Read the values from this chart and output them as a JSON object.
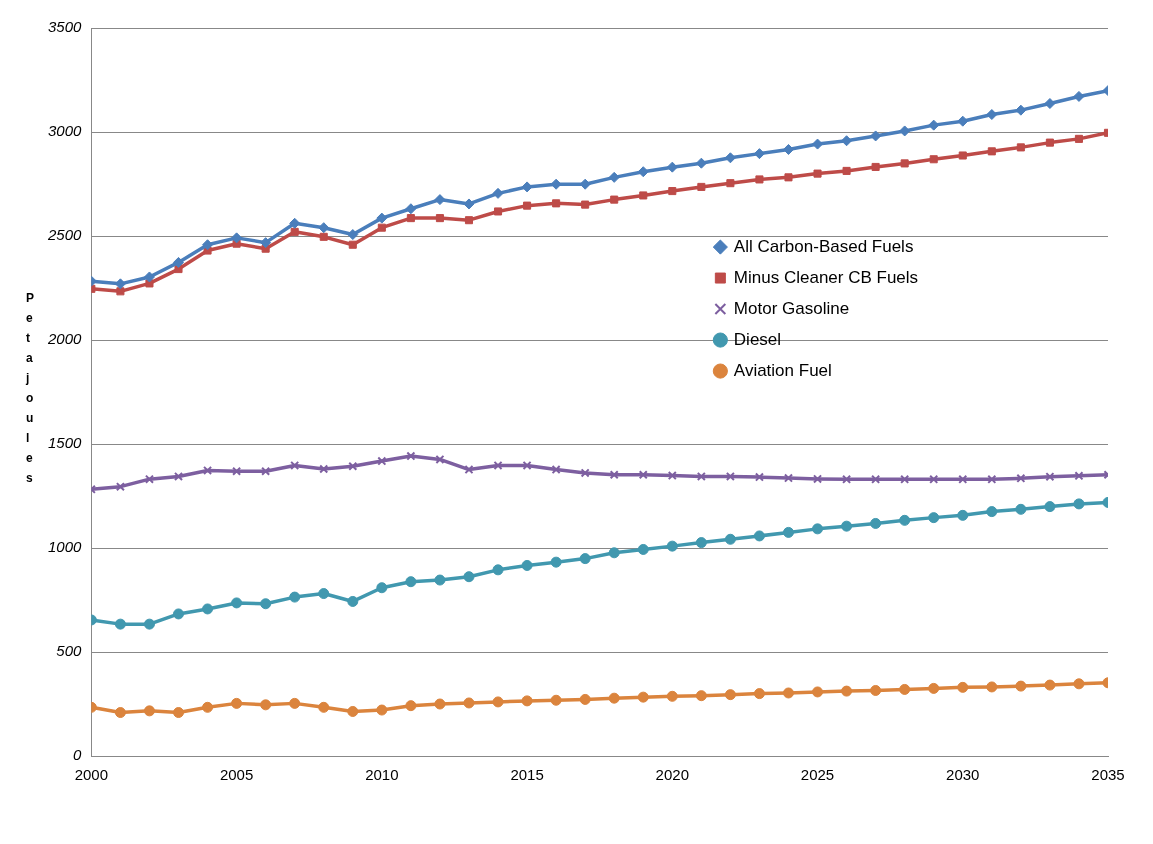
{
  "chart_data": {
    "type": "line",
    "ylabel": "Petajoules",
    "xlim": [
      2000,
      2035
    ],
    "xticks": [
      2000,
      2005,
      2010,
      2015,
      2020,
      2025,
      2030,
      2035
    ],
    "ylim": [
      0,
      3500
    ],
    "yticks": [
      0,
      500,
      1000,
      1500,
      2000,
      2500,
      3000,
      3500
    ],
    "grid": "y",
    "legend": "right",
    "line_style": "solid",
    "x": [
      2000,
      2001,
      2002,
      2003,
      2004,
      2005,
      2006,
      2007,
      2008,
      2009,
      2010,
      2011,
      2012,
      2013,
      2014,
      2015,
      2016,
      2017,
      2018,
      2019,
      2020,
      2021,
      2022,
      2023,
      2024,
      2025,
      2026,
      2027,
      2028,
      2029,
      2030,
      2031,
      2032,
      2033,
      2034,
      2035
    ],
    "series": [
      {
        "name": "All Carbon-Based Fuels",
        "color": "#4a7ebb",
        "marker": "diamond",
        "values": [
          2283,
          2270,
          2303,
          2373,
          2458,
          2491,
          2468,
          2561,
          2540,
          2507,
          2586,
          2631,
          2675,
          2654,
          2705,
          2736,
          2749,
          2749,
          2782,
          2809,
          2831,
          2850,
          2876,
          2896,
          2916,
          2942,
          2958,
          2981,
          3005,
          3033,
          3052,
          3084,
          3105,
          3137,
          3171,
          3199
        ]
      },
      {
        "name": "Minus Cleaner CB Fuels",
        "color": "#be4b48",
        "marker": "square",
        "values": [
          2246,
          2234,
          2272,
          2341,
          2430,
          2463,
          2439,
          2520,
          2496,
          2458,
          2540,
          2586,
          2586,
          2576,
          2618,
          2646,
          2657,
          2651,
          2675,
          2695,
          2716,
          2736,
          2754,
          2772,
          2782,
          2800,
          2813,
          2832,
          2849,
          2869,
          2887,
          2907,
          2926,
          2949,
          2967,
          2996
        ]
      },
      {
        "name": "Motor Gasoline",
        "color": "#7d5fa0",
        "marker": "cross",
        "values": [
          1282,
          1295,
          1331,
          1344,
          1373,
          1369,
          1369,
          1397,
          1380,
          1393,
          1418,
          1442,
          1426,
          1377,
          1397,
          1397,
          1377,
          1361,
          1352,
          1352,
          1348,
          1344,
          1344,
          1341,
          1336,
          1332,
          1330,
          1330,
          1330,
          1330,
          1330,
          1330,
          1335,
          1343,
          1347,
          1352
        ]
      },
      {
        "name": "Diesel",
        "color": "#4198af",
        "marker": "circle",
        "values": [
          654,
          634,
          634,
          683,
          707,
          736,
          732,
          764,
          781,
          743,
          809,
          838,
          846,
          862,
          895,
          916,
          932,
          949,
          977,
          993,
          1009,
          1026,
          1042,
          1058,
          1075,
          1092,
          1105,
          1118,
          1133,
          1146,
          1157,
          1175,
          1186,
          1199,
          1212,
          1219
        ]
      },
      {
        "name": "Aviation Fuel",
        "color": "#db843d",
        "marker": "circle",
        "values": [
          234,
          209,
          217,
          209,
          234,
          253,
          246,
          253,
          234,
          214,
          221,
          242,
          250,
          255,
          260,
          265,
          268,
          272,
          278,
          283,
          287,
          290,
          295,
          300,
          303,
          308,
          312,
          315,
          320,
          325,
          330,
          332,
          336,
          341,
          347,
          352
        ]
      }
    ]
  }
}
